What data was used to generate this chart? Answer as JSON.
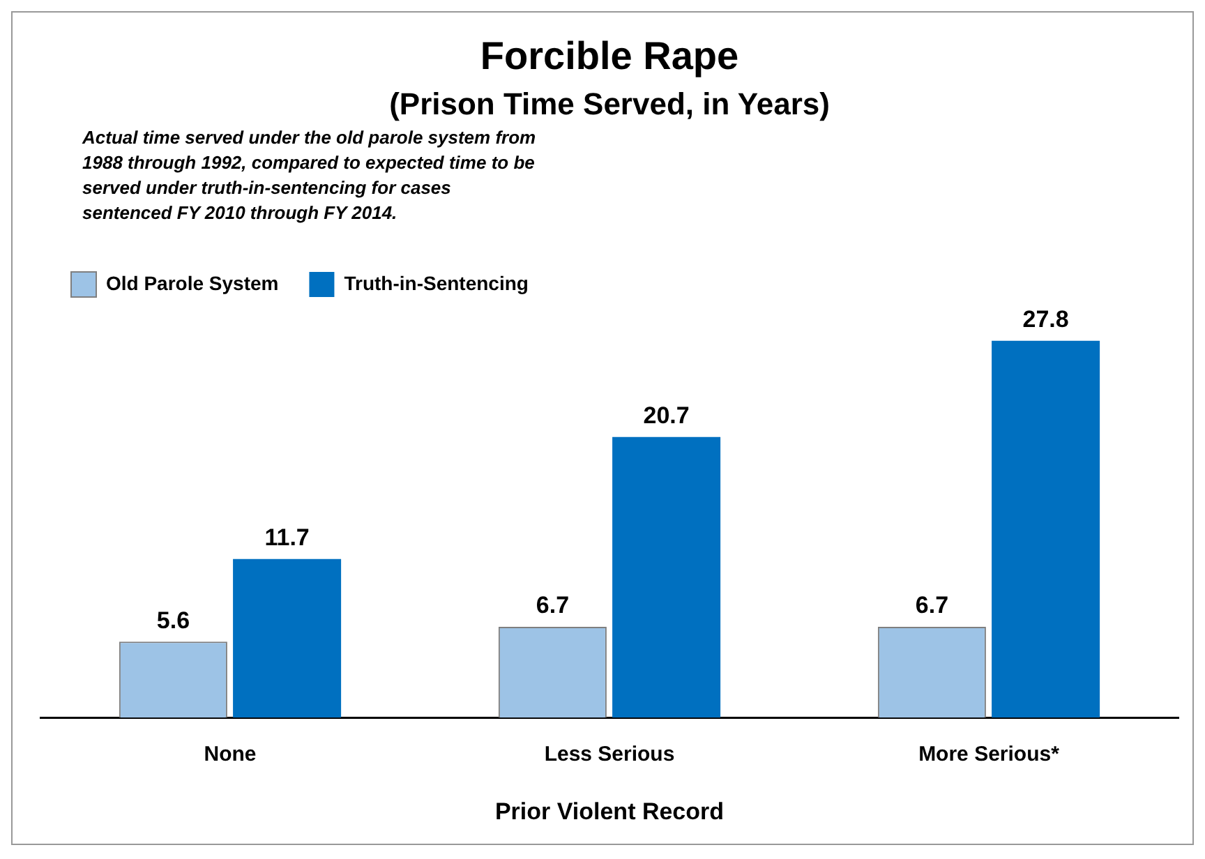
{
  "chart_data": {
    "type": "bar",
    "title": "Forcible Rape",
    "subtitle": "(Prison Time Served, in Years)",
    "xlabel": "Prior Violent Record",
    "annotations": [
      "Actual time served under the old parole system from 1988 through 1992, compared to expected time to be served under truth-in-sentencing for cases sentenced FY 2010 through FY 2014."
    ],
    "categories": [
      "None",
      "Less Serious",
      "More Serious*"
    ],
    "series": [
      {
        "name": "Old Parole System",
        "color": "#9dc3e6",
        "values": [
          5.6,
          6.7,
          6.7
        ]
      },
      {
        "name": "Truth-in-Sentencing",
        "color": "#0070c0",
        "values": [
          11.7,
          20.7,
          27.8
        ]
      }
    ],
    "data_labels": true,
    "legend": "top left",
    "grid": false
  }
}
